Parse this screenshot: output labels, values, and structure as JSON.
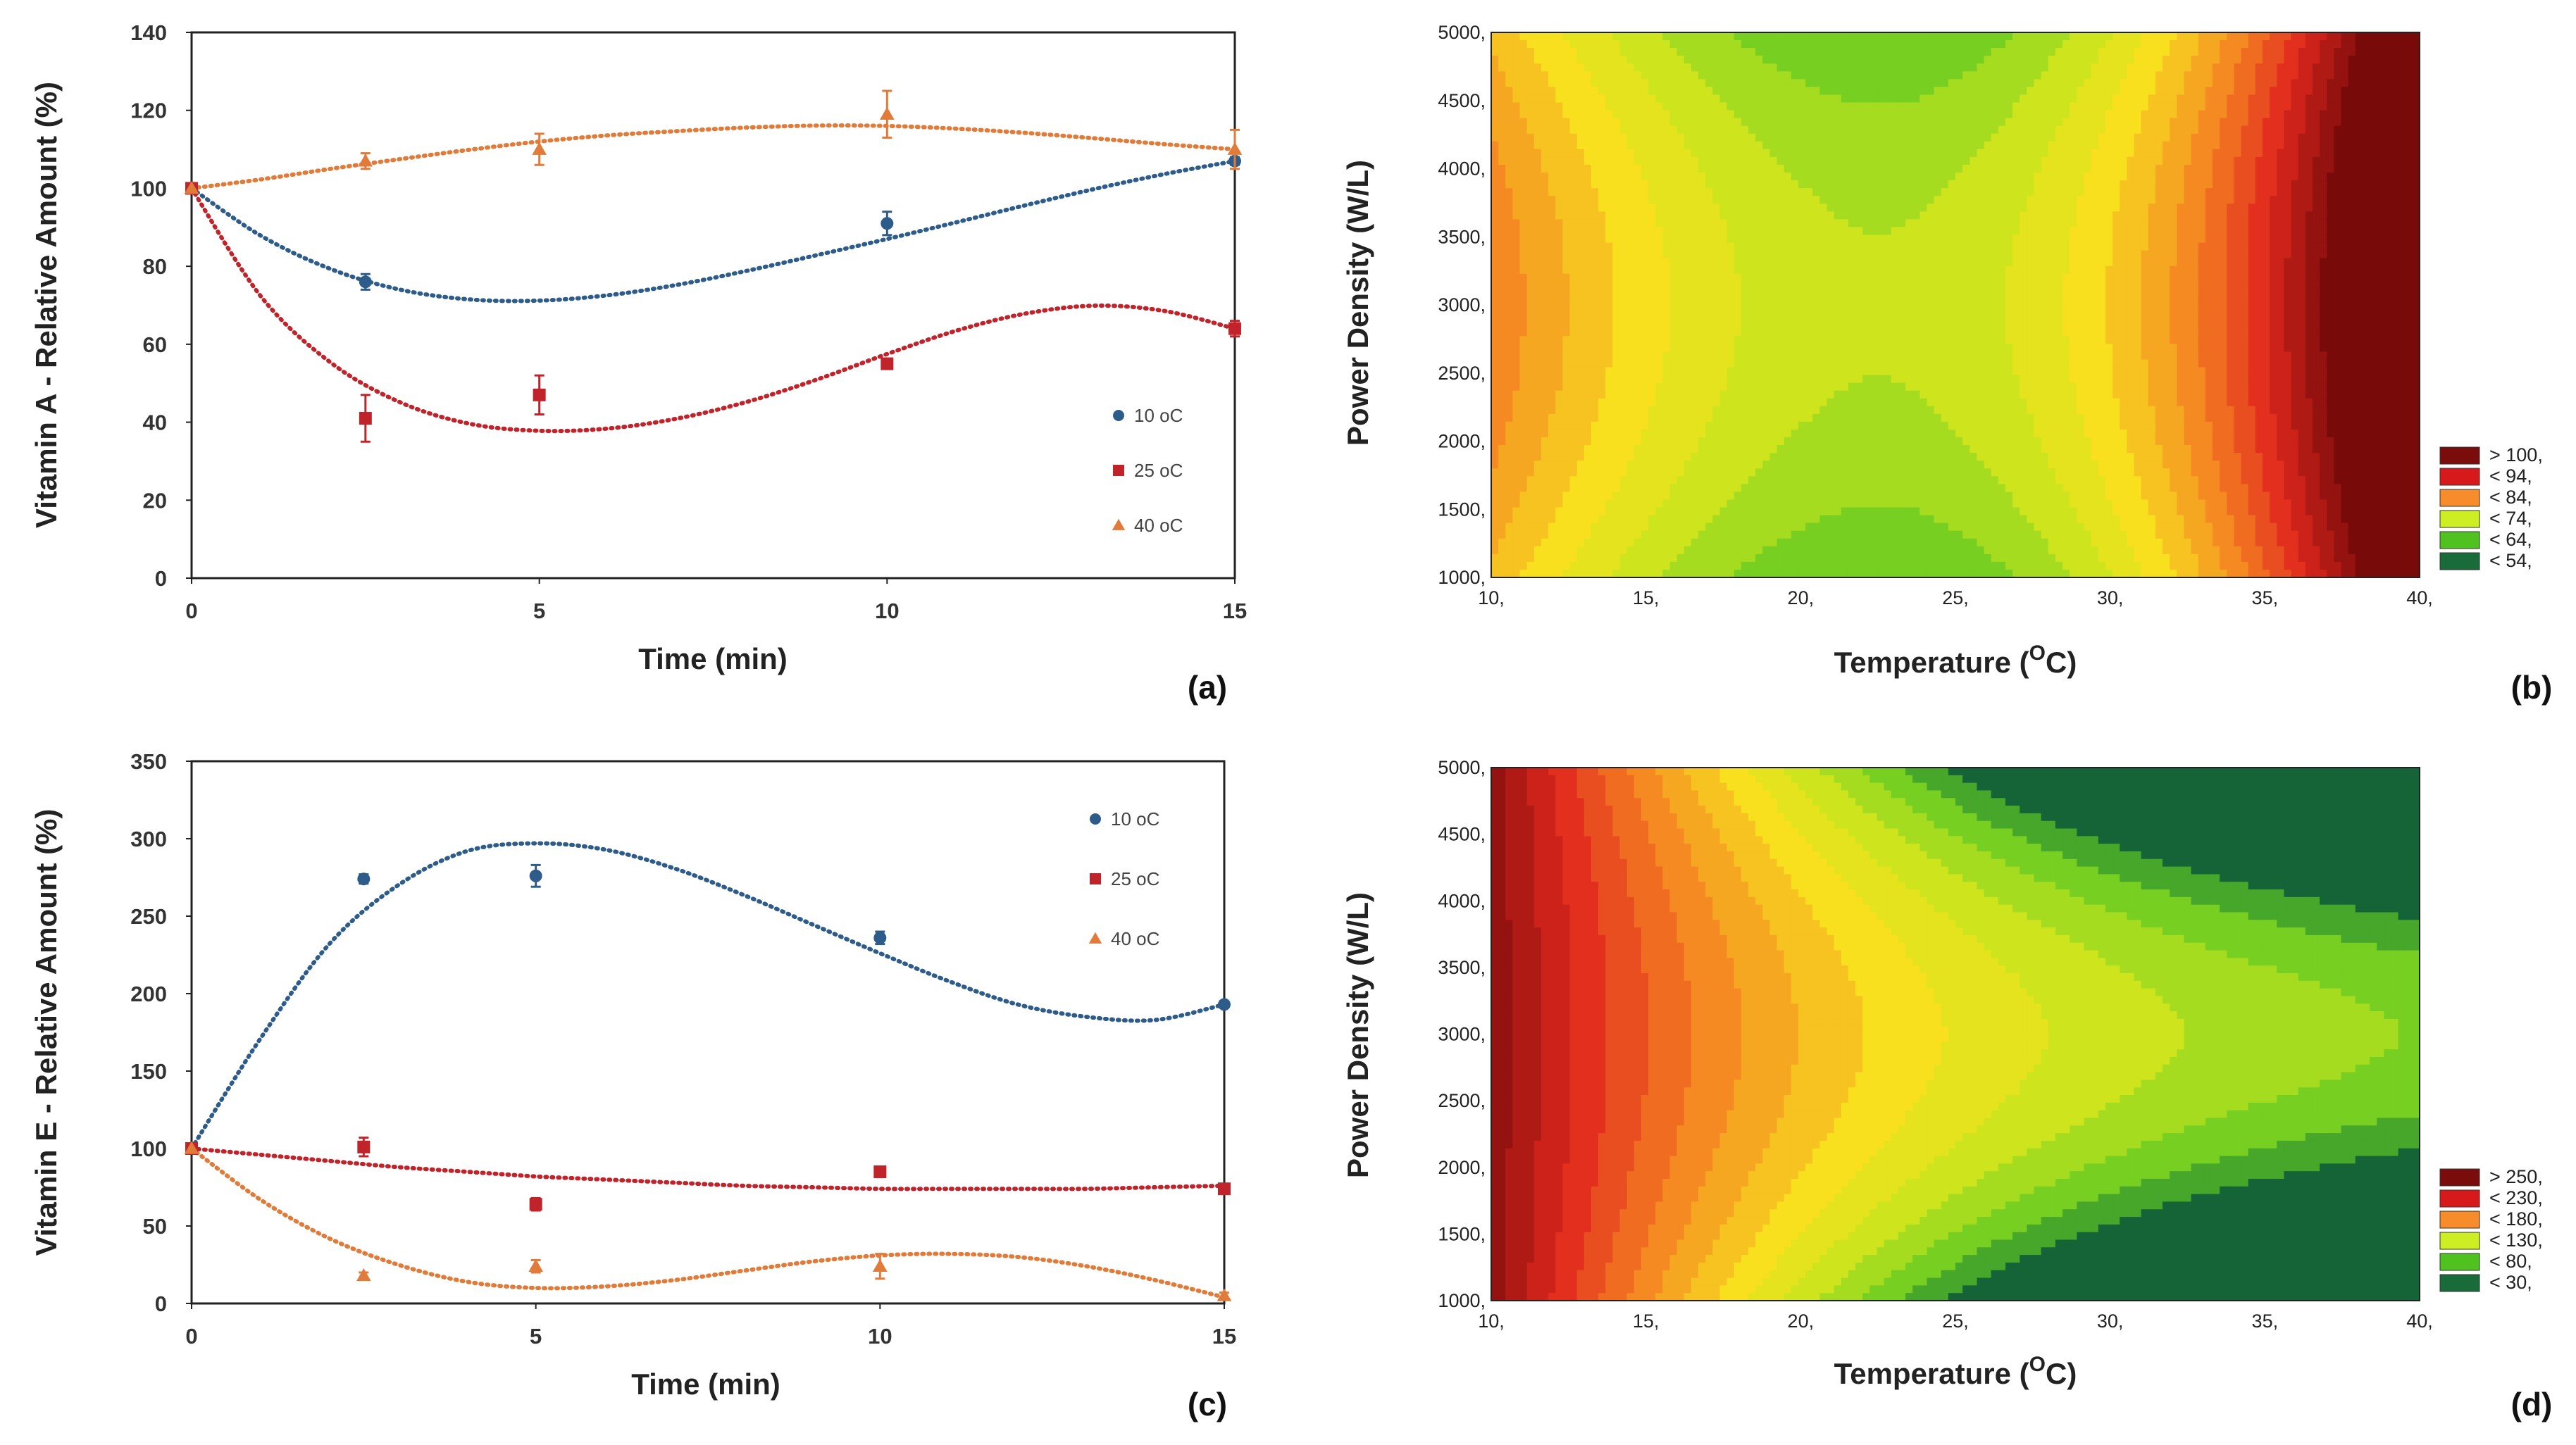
{
  "chart_data": [
    {
      "panel": "(a)",
      "type": "scatter",
      "xlabel": "Time (min)",
      "ylabel": "Vitamin A - Relative Amount (%)",
      "xlim": [
        0,
        15
      ],
      "ylim": [
        0,
        140
      ],
      "x_ticks": [
        0,
        5,
        10,
        15
      ],
      "y_ticks": [
        0,
        20,
        40,
        60,
        80,
        100,
        120,
        140
      ],
      "legend_position": "right",
      "series": [
        {
          "name": "10 oC",
          "color": "#2e5c8a",
          "marker": "circle",
          "x": [
            0,
            2.5,
            5,
            10,
            15
          ],
          "y": [
            100,
            76,
            null,
            91,
            107
          ],
          "err": [
            0,
            2,
            0,
            3,
            1
          ],
          "trend_x": [
            0,
            1,
            2,
            3,
            4,
            5,
            6,
            7,
            8,
            9,
            10,
            11,
            12,
            13,
            14,
            15
          ],
          "trend_y": [
            100,
            87.8,
            79.3,
            74.0,
            71.5,
            71.2,
            72.6,
            75.3,
            78.9,
            82.9,
            87.0,
            91.3,
            95.7,
            99.9,
            103.7,
            107.0
          ]
        },
        {
          "name": "25 oC",
          "color": "#c0232a",
          "marker": "square",
          "x": [
            0,
            2.5,
            5,
            10,
            15
          ],
          "y": [
            100,
            41,
            47,
            55,
            64
          ],
          "err": [
            0,
            6,
            5,
            1,
            2
          ],
          "trend_x": [
            0,
            1,
            2,
            3,
            4,
            5,
            6,
            7,
            8,
            9,
            10,
            11,
            12,
            13,
            14,
            15
          ],
          "trend_y": [
            100,
            72.2,
            55.3,
            45.1,
            39.6,
            37.8,
            38.4,
            41.0,
            45.3,
            51.0,
            57.5,
            63.5,
            67.9,
            69.9,
            68.5,
            64.0
          ]
        },
        {
          "name": "40 oC",
          "color": "#e07b39",
          "marker": "triangle",
          "x": [
            0,
            2.5,
            5,
            10,
            15
          ],
          "y": [
            100,
            107,
            110,
            119,
            110
          ],
          "err": [
            0,
            2,
            4,
            6,
            5
          ],
          "trend_x": [
            0,
            1,
            2,
            3,
            4,
            5,
            6,
            7,
            8,
            9,
            10,
            11,
            12,
            13,
            14,
            15
          ],
          "trend_y": [
            100,
            102.3,
            105.0,
            107.5,
            109.9,
            112.0,
            113.6,
            114.7,
            115.6,
            116.1,
            116.0,
            115.3,
            114.2,
            112.8,
            111.3,
            110.0
          ]
        }
      ]
    },
    {
      "panel": "(b)",
      "type": "heatmap",
      "xlabel": "Temperature (",
      "xlabel_sup": "O",
      "xlabel_end": "C)",
      "ylabel": "Power Density (W/L)",
      "x_ticks": [
        "10,",
        "15,",
        "20,",
        "25,",
        "30,",
        "35,",
        "40,"
      ],
      "x_values": [
        10,
        15,
        20,
        25,
        30,
        35,
        40
      ],
      "y_ticks": [
        "1000,",
        "1500,",
        "2000,",
        "2500,",
        "3000,",
        "3500,",
        "4000,",
        "4500,",
        "5000,"
      ],
      "y_values": [
        1000,
        1500,
        2000,
        2500,
        3000,
        3500,
        4000,
        4500,
        5000
      ],
      "xlim": [
        10,
        40
      ],
      "ylim": [
        1000,
        5000
      ],
      "zlim": [
        50,
        104
      ],
      "legend_labels": [
        "> 100,",
        "< 94,",
        "< 84,",
        "< 74,",
        "< 64,",
        "< 54,"
      ],
      "legend_colors": [
        "#7a0c0c",
        "#d7191c",
        "#f78c2a",
        "#ccee22",
        "#4fc21f",
        "#1a6b3a"
      ],
      "surface": {
        "model": "saddle",
        "x_center": 22.5,
        "y_center": 3000,
        "base": 64,
        "x_coef": 0.156,
        "x_cubic": 0.00267,
        "y_coef": 1.8e-06
      }
    },
    {
      "panel": "(c)",
      "type": "scatter",
      "xlabel": "Time (min)",
      "ylabel": "Vitamin E - Relative Amount (%)",
      "xlim": [
        0,
        15
      ],
      "ylim": [
        0,
        350
      ],
      "x_ticks": [
        0,
        5,
        10,
        15
      ],
      "y_ticks": [
        0,
        50,
        100,
        150,
        200,
        250,
        300,
        350
      ],
      "legend_position": "top-right",
      "series": [
        {
          "name": "10 oC",
          "color": "#2e5c8a",
          "marker": "circle",
          "x": [
            0,
            2.5,
            5,
            10,
            15
          ],
          "y": [
            100,
            274,
            276,
            236,
            193
          ],
          "err": [
            0,
            3,
            7,
            4,
            2
          ],
          "trend_x": [
            0,
            1,
            2,
            3,
            4,
            5,
            6,
            7,
            8,
            9,
            10,
            11,
            12,
            13,
            14,
            15
          ],
          "trend_y": [
            100,
            171,
            232,
            270,
            292,
            297,
            293,
            281,
            264,
            245,
            226,
            208,
            193,
            185,
            183,
            193
          ]
        },
        {
          "name": "25 oC",
          "color": "#c0232a",
          "marker": "square",
          "x": [
            0,
            2.5,
            5,
            10,
            15
          ],
          "y": [
            100,
            101,
            64,
            85,
            74
          ],
          "err": [
            0,
            6,
            4,
            2,
            2
          ],
          "trend_x": [
            0,
            1,
            2,
            3,
            4,
            5,
            6,
            7,
            8,
            9,
            10,
            11,
            12,
            13,
            14,
            15
          ],
          "trend_y": [
            100,
            96,
            92,
            88,
            85,
            82,
            80,
            78,
            76,
            75,
            74,
            74,
            74,
            74,
            75,
            76
          ]
        },
        {
          "name": "40 oC",
          "color": "#e07b39",
          "marker": "triangle",
          "x": [
            0,
            2.5,
            5,
            10,
            15
          ],
          "y": [
            100,
            18,
            24,
            24,
            5
          ],
          "err": [
            0,
            2,
            4,
            8,
            2
          ],
          "trend_x": [
            0,
            1,
            2,
            3,
            4,
            5,
            6,
            7,
            8,
            9,
            10,
            11,
            12,
            13,
            14,
            15
          ],
          "trend_y": [
            100,
            67,
            42,
            25,
            14,
            10,
            11,
            15,
            21,
            27,
            31,
            32,
            30,
            24,
            15,
            4
          ]
        }
      ]
    },
    {
      "panel": "(d)",
      "type": "heatmap",
      "xlabel": "Temperature (",
      "xlabel_sup": "O",
      "xlabel_end": "C)",
      "ylabel": "Power Density (W/L)",
      "x_ticks": [
        "10,",
        "15,",
        "20,",
        "25,",
        "30,",
        "35,",
        "40,"
      ],
      "x_values": [
        10,
        15,
        20,
        25,
        30,
        35,
        40
      ],
      "y_ticks": [
        "1000,",
        "1500,",
        "2000,",
        "2500,",
        "3000,",
        "3500,",
        "4000,",
        "4500,",
        "5000,"
      ],
      "y_values": [
        1000,
        1500,
        2000,
        2500,
        3000,
        3500,
        4000,
        4500,
        5000
      ],
      "xlim": [
        10,
        40
      ],
      "ylim": [
        1000,
        5000
      ],
      "zlim": [
        20,
        260
      ],
      "legend_labels": [
        "> 250,",
        "< 230,",
        "< 180,",
        "< 130,",
        "< 80,",
        "< 30,"
      ],
      "legend_colors": [
        "#7a0c0c",
        "#d7191c",
        "#f78c2a",
        "#ccee22",
        "#4fc21f",
        "#1a6b3a"
      ],
      "surface": {
        "model": "decay",
        "x_start": 10,
        "x_end": 40,
        "high": 255,
        "low": 45,
        "curvature": 2.4,
        "y_center": 3000,
        "y_bend": 6.5e-06
      }
    }
  ]
}
